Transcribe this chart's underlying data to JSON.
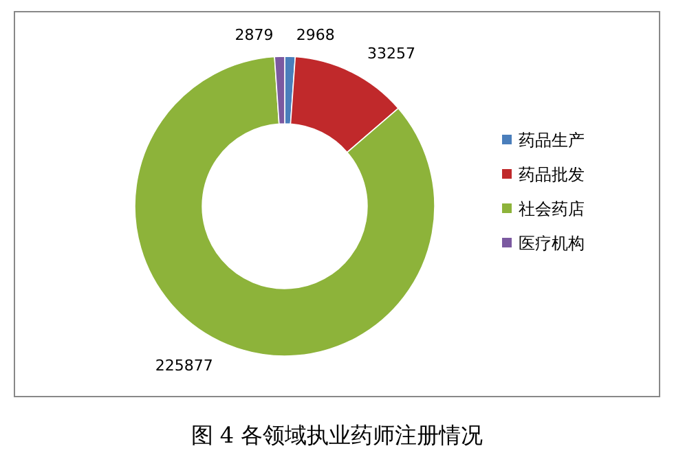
{
  "chart_data": {
    "type": "donut",
    "title": "图 4 各领域执业药师注册情况",
    "categories": [
      "药品生产",
      "药品批发",
      "社会药店",
      "医疗机构"
    ],
    "values": [
      2968,
      33257,
      225877,
      2879
    ],
    "colors": [
      "#4a7ebb",
      "#c0292b",
      "#8db33a",
      "#7b59a0"
    ],
    "data_labels": true,
    "legend": "right"
  }
}
